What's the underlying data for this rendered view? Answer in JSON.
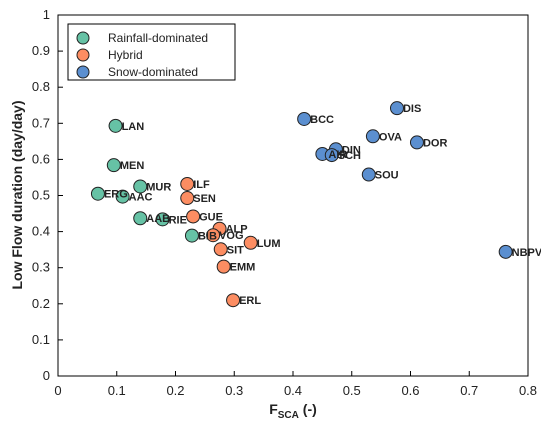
{
  "chart_data": {
    "type": "scatter",
    "xlabel": "FSCA (-)",
    "xlabel_main": "F",
    "xlabel_sub": "SCA",
    "xlabel_suffix": " (-)",
    "ylabel": "Low Flow duration (day/day)",
    "xlim": [
      0,
      0.8
    ],
    "ylim": [
      0,
      1
    ],
    "x_ticks": [
      "0",
      "0.1",
      "0.2",
      "0.3",
      "0.4",
      "0.5",
      "0.6",
      "0.7",
      "0.8"
    ],
    "y_ticks": [
      "0",
      "0.1",
      "0.2",
      "0.3",
      "0.4",
      "0.5",
      "0.6",
      "0.7",
      "0.8",
      "0.9",
      "1"
    ],
    "grid": false,
    "legend_position": "top-left",
    "series": [
      {
        "name": "Rainfall-dominated",
        "color": "#66c2a5",
        "points": [
          {
            "label": "LAN",
            "x": 0.098,
            "y": 0.693
          },
          {
            "label": "MEN",
            "x": 0.095,
            "y": 0.584
          },
          {
            "label": "MUR",
            "x": 0.14,
            "y": 0.525
          },
          {
            "label": "ERG",
            "x": 0.068,
            "y": 0.505
          },
          {
            "label": "AAC",
            "x": 0.11,
            "y": 0.497
          },
          {
            "label": "AAB",
            "x": 0.14,
            "y": 0.437
          },
          {
            "label": "RIE",
            "x": 0.178,
            "y": 0.434
          },
          {
            "label": "BIB",
            "x": 0.228,
            "y": 0.389
          }
        ]
      },
      {
        "name": "Hybrid",
        "color": "#fc8d62",
        "points": [
          {
            "label": "ILF",
            "x": 0.22,
            "y": 0.532
          },
          {
            "label": "SEN",
            "x": 0.22,
            "y": 0.493
          },
          {
            "label": "GUE",
            "x": 0.23,
            "y": 0.442
          },
          {
            "label": "ALP",
            "x": 0.275,
            "y": 0.408
          },
          {
            "label": "VOG",
            "x": 0.264,
            "y": 0.39
          },
          {
            "label": "SIT",
            "x": 0.277,
            "y": 0.351
          },
          {
            "label": "LUM",
            "x": 0.328,
            "y": 0.369
          },
          {
            "label": "EMM",
            "x": 0.282,
            "y": 0.303
          },
          {
            "label": "ERL",
            "x": 0.298,
            "y": 0.21
          }
        ]
      },
      {
        "name": "Snow-dominated",
        "color": "#5b8fd0",
        "points": [
          {
            "label": "BCC",
            "x": 0.419,
            "y": 0.712
          },
          {
            "label": "DIS",
            "x": 0.577,
            "y": 0.742
          },
          {
            "label": "OVA",
            "x": 0.536,
            "y": 0.664
          },
          {
            "label": "DOR",
            "x": 0.611,
            "y": 0.647
          },
          {
            "label": "DIN",
            "x": 0.473,
            "y": 0.628
          },
          {
            "label": "AIR",
            "x": 0.45,
            "y": 0.615
          },
          {
            "label": "SCH",
            "x": 0.466,
            "y": 0.612
          },
          {
            "label": "SOU",
            "x": 0.529,
            "y": 0.558
          },
          {
            "label": "NBPV",
            "x": 0.762,
            "y": 0.344
          }
        ]
      }
    ]
  }
}
